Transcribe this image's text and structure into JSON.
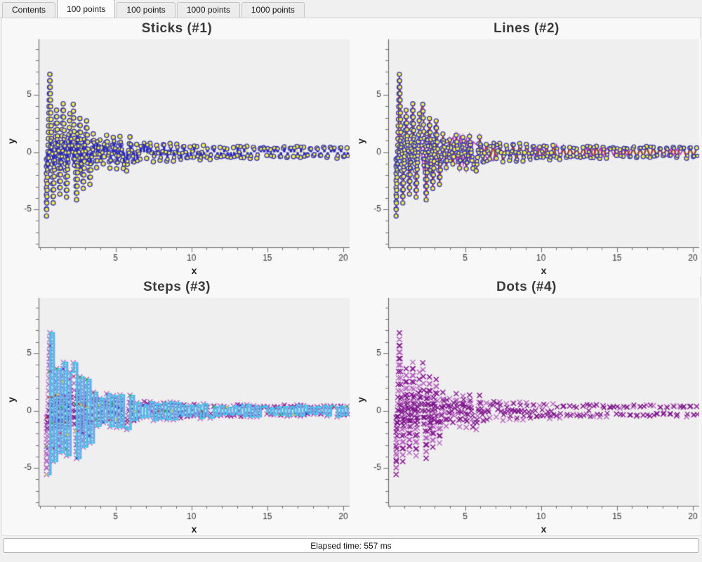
{
  "tabs": {
    "items": [
      {
        "label": "Contents",
        "selected": false
      },
      {
        "label": "100 points",
        "selected": true
      },
      {
        "label": "100 points",
        "selected": false
      },
      {
        "label": "1000 points",
        "selected": false
      },
      {
        "label": "1000 points",
        "selected": false
      }
    ]
  },
  "status_bar": {
    "text": "Elapsed time: 557 ms"
  },
  "palette": {
    "plot_bg": "#efefef",
    "outer_bg": "#f8f8f8",
    "axis": "#6e6e6e",
    "tick_label": "#333333",
    "title": "#3a3a3a",
    "yellow_stick": "#e9e414",
    "marker_fill": "#f8f032",
    "marker_stroke": "#3939bb",
    "blue_stick": "#2a2ac9",
    "red_line": "#d02020",
    "green_line": "#28b428",
    "magenta_line": "#c828c8",
    "cyan_step": "#2ed3ea",
    "periwinkle_step": "#8895ee",
    "purple_x_dark": "#8a1b96",
    "purple_x_light": "#b55cc0",
    "dot_cycle": [
      "#e03030",
      "#30b030",
      "#e8d020",
      "#3040d0",
      "#c030c0"
    ]
  },
  "datasets": {
    "description": "Damped high-frequency random oscillation, 100 points per set, x from 0.45 to 20.3; amplitude decays from ~8.5 to ~0.4. Same data shown in all four charts with different renderers.",
    "seed": 1337,
    "ds1": {
      "x0": 0.45,
      "x1": 20.3,
      "dx": 0.22,
      "a": 8.8,
      "tau": 2.6,
      "base": 0.42,
      "beat_freq": 1.12,
      "beat_phase": 0.25,
      "flip_p": 0.85,
      "step_y": 0.56
    },
    "ds2": {
      "x0": 0.5,
      "x1": 20.3,
      "dx": 0.22,
      "a": 1.6,
      "tau": 5.0,
      "base": 0.36,
      "beat_freq": 0.9,
      "beat_phase": 0.9,
      "flip_p": 0.8,
      "step_y": 0.5
    },
    "ds3": {
      "x0": 0.47,
      "x1": 20.3,
      "dx": 0.22,
      "a": 2.2,
      "tau": 4.2,
      "base": 0.34,
      "beat_freq": 1.0,
      "beat_phase": 1.6,
      "flip_p": 0.8,
      "step_y": 0.5
    }
  },
  "chart_data": [
    {
      "type": "sticks",
      "title": "Sticks (#1)",
      "xlabel": "x",
      "ylabel": "y",
      "xlim": [
        -0.07,
        20.42
      ],
      "ylim": [
        -8.3,
        9.85
      ],
      "xticks_labeled": [
        5,
        10,
        15,
        20
      ],
      "yticks_labeled": [
        -5,
        0,
        5
      ],
      "minor_tick_step": 1,
      "grid": false,
      "legend": "none",
      "series": [
        {
          "data": "ds1",
          "draw": "sticks",
          "color": "#e9e414",
          "width": 1.6,
          "marker": {
            "shape": "circle",
            "fill": "#f8f032",
            "stroke": "#3939bb",
            "size": 3.1
          }
        },
        {
          "data": "ds2",
          "draw": "sticks",
          "color": "#2a2ac9",
          "width": 3.4,
          "marker": {
            "shape": "circle",
            "fill": "#f8f032",
            "stroke": "#3939bb",
            "size": 2.5
          }
        }
      ]
    },
    {
      "type": "line",
      "title": "Lines (#2)",
      "xlabel": "x",
      "ylabel": "y",
      "xlim": [
        -0.07,
        20.42
      ],
      "ylim": [
        -8.3,
        9.85
      ],
      "xticks_labeled": [
        5,
        10,
        15,
        20
      ],
      "yticks_labeled": [
        -5,
        0,
        5
      ],
      "minor_tick_step": 1,
      "grid": false,
      "legend": "none",
      "series": [
        {
          "data": "ds3",
          "draw": "line",
          "color": "#c828c8",
          "width": 1.6,
          "marker": null
        },
        {
          "data": "ds1",
          "draw": "line",
          "color": "#28b428",
          "width": 1.2,
          "xshift": 0.05,
          "yscale": 0.9,
          "marker": null
        },
        {
          "data": "ds1",
          "draw": "line",
          "color": "#d02020",
          "width": 1.6,
          "marker": {
            "shape": "circle",
            "fill": "#f8f032",
            "stroke": "#3939bb",
            "size": 3.0
          }
        },
        {
          "data": "ds2",
          "draw": "none",
          "color": "#2a2ac9",
          "width": 1,
          "marker": {
            "shape": "circle",
            "fill": "#f8f032",
            "stroke": "#3939bb",
            "size": 2.4
          }
        }
      ]
    },
    {
      "type": "steps",
      "title": "Steps (#3)",
      "xlabel": "x",
      "ylabel": "y",
      "xlim": [
        -0.07,
        20.42
      ],
      "ylim": [
        -8.3,
        9.85
      ],
      "xticks_labeled": [
        5,
        10,
        15,
        20
      ],
      "yticks_labeled": [
        -5,
        0,
        5
      ],
      "minor_tick_step": 1,
      "grid": false,
      "legend": "none",
      "series": [
        {
          "data": "ds1",
          "draw": "xmarkers",
          "color": "#b55cc0",
          "size": 3.6
        },
        {
          "data": "ds2",
          "draw": "xmarkers",
          "color": "#8a1b96",
          "size": 3.2
        },
        {
          "data": "ds1",
          "draw": "steps",
          "color": "#8895ee",
          "width": 2.0,
          "xshift": 0.07
        },
        {
          "data": "ds1",
          "draw": "steps",
          "color": "#2ed3ea",
          "width": 2.0
        },
        {
          "data": "ds1",
          "draw": "dotcycle",
          "size": 1.4,
          "every": 4
        }
      ]
    },
    {
      "type": "scatter",
      "title": "Dots (#4)",
      "xlabel": "x",
      "ylabel": "y",
      "xlim": [
        -0.07,
        20.42
      ],
      "ylim": [
        -8.3,
        9.85
      ],
      "xticks_labeled": [
        5,
        10,
        15,
        20
      ],
      "yticks_labeled": [
        -5,
        0,
        5
      ],
      "minor_tick_step": 1,
      "grid": false,
      "legend": "none",
      "series": [
        {
          "data": "ds1",
          "draw": "xmarkers",
          "color": "#b55cc0",
          "size": 3.6
        },
        {
          "data": "ds1",
          "draw": "xmarkers",
          "color": "#8a1b96",
          "size": 3.4,
          "every": 2
        },
        {
          "data": "ds2",
          "draw": "xmarkers",
          "color": "#7a1488",
          "size": 3.2
        }
      ]
    }
  ]
}
